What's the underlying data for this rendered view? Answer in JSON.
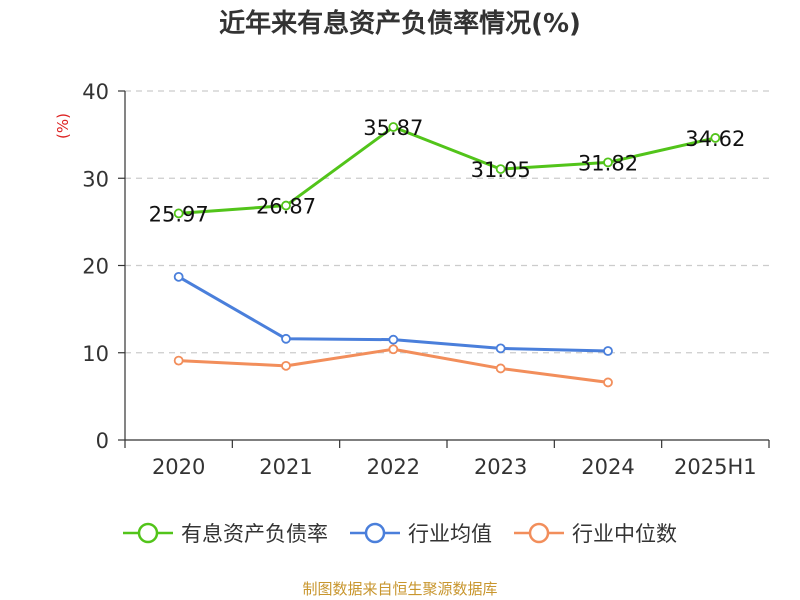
{
  "title": "近年来有息资产负债率情况(%)",
  "source_note": "制图数据来自恒生聚源数据库",
  "chart_data": {
    "type": "line",
    "title": "近年来有息资产负债率情况(%)",
    "ylabel": "(%)",
    "xlabel": "",
    "categories": [
      "2020",
      "2021",
      "2022",
      "2023",
      "2024",
      "2025H1"
    ],
    "ylim": [
      0,
      40
    ],
    "yticks": [
      0,
      10,
      20,
      30,
      40
    ],
    "grid": true,
    "legend_position": "bottom",
    "series": [
      {
        "name": "有息资产负债率",
        "color": "#52c41a",
        "values": [
          25.97,
          26.87,
          35.87,
          31.05,
          31.82,
          34.62
        ],
        "labels": [
          "25.97",
          "26.87",
          "35.87",
          "31.05",
          "31.82",
          "34.62"
        ]
      },
      {
        "name": "行业均值",
        "color": "#4a7fdb",
        "values": [
          18.7,
          11.6,
          11.5,
          10.5,
          10.2,
          null
        ]
      },
      {
        "name": "行业中位数",
        "color": "#f28e5b",
        "values": [
          9.1,
          8.5,
          10.4,
          8.2,
          6.6,
          null
        ]
      }
    ]
  }
}
